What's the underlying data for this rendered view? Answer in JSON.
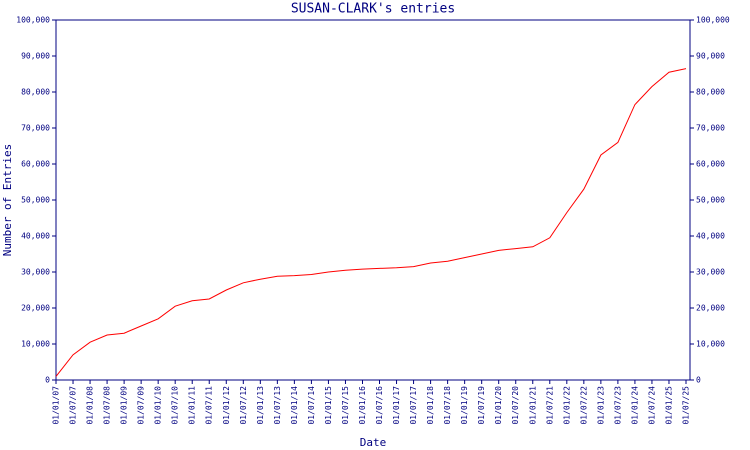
{
  "chart_data": {
    "type": "line",
    "title": "SUSAN-CLARK's entries",
    "x_label": "Date",
    "y_label": "Number of Entries",
    "x": [
      "01/01/07",
      "01/07/07",
      "01/01/08",
      "01/07/08",
      "01/01/09",
      "01/07/09",
      "01/01/10",
      "01/07/10",
      "01/01/11",
      "01/07/11",
      "01/01/12",
      "01/07/12",
      "01/01/13",
      "01/07/13",
      "01/01/14",
      "01/07/14",
      "01/01/15",
      "01/07/15",
      "01/01/16",
      "01/07/16",
      "01/01/17",
      "01/07/17",
      "01/01/18",
      "01/07/18",
      "01/01/19",
      "01/07/19",
      "01/01/20",
      "01/07/20",
      "01/01/21",
      "01/07/21",
      "01/01/22",
      "01/07/22",
      "01/01/23",
      "01/07/23",
      "01/01/24",
      "01/07/24",
      "01/01/25",
      "01/07/25"
    ],
    "series": [
      {
        "name": "entries",
        "color": "#ff0000",
        "values": [
          1000,
          7000,
          10500,
          12500,
          13000,
          15000,
          17000,
          20500,
          22000,
          22500,
          25000,
          27000,
          28000,
          28800,
          29000,
          29300,
          30000,
          30500,
          30800,
          31000,
          31200,
          31500,
          32500,
          33000,
          34000,
          35000,
          36000,
          36500,
          37000,
          39500,
          46500,
          53000,
          62500,
          66000,
          76500,
          81500,
          85500,
          86500
        ]
      }
    ],
    "xticks": [
      "01/01/07",
      "01/07/07",
      "01/01/08",
      "01/07/08",
      "01/01/09",
      "01/07/09",
      "01/01/10",
      "01/07/10",
      "01/01/11",
      "01/07/11",
      "01/01/12",
      "01/07/12",
      "01/01/13",
      "01/07/13",
      "01/01/14",
      "01/07/14",
      "01/01/15",
      "01/07/15",
      "01/01/16",
      "01/07/16",
      "01/01/17",
      "01/07/17",
      "01/01/18",
      "01/07/18",
      "01/01/19",
      "01/07/19",
      "01/01/20",
      "01/07/20",
      "01/01/21",
      "01/07/21",
      "01/01/22",
      "01/07/22",
      "01/01/23",
      "01/07/23",
      "01/01/24",
      "01/07/24",
      "01/01/25",
      "01/07/25"
    ],
    "xlim": [
      "01/01/07",
      "01/07/25"
    ],
    "ylim": [
      0,
      100000
    ],
    "yticks": [
      0,
      {
        "value": 10000,
        "label": "10,000"
      },
      {
        "value": 20000,
        "label": "20,000"
      },
      {
        "value": 30000,
        "label": "30,000"
      },
      {
        "value": 40000,
        "label": "40,000"
      },
      {
        "value": 50000,
        "label": "50,000"
      },
      {
        "value": 60000,
        "label": "60,000"
      },
      {
        "value": 70000,
        "label": "70,000"
      },
      {
        "value": 80000,
        "label": "80,000"
      },
      {
        "value": 90000,
        "label": "90,000"
      },
      {
        "value": 100000,
        "label": "100,000"
      }
    ]
  }
}
